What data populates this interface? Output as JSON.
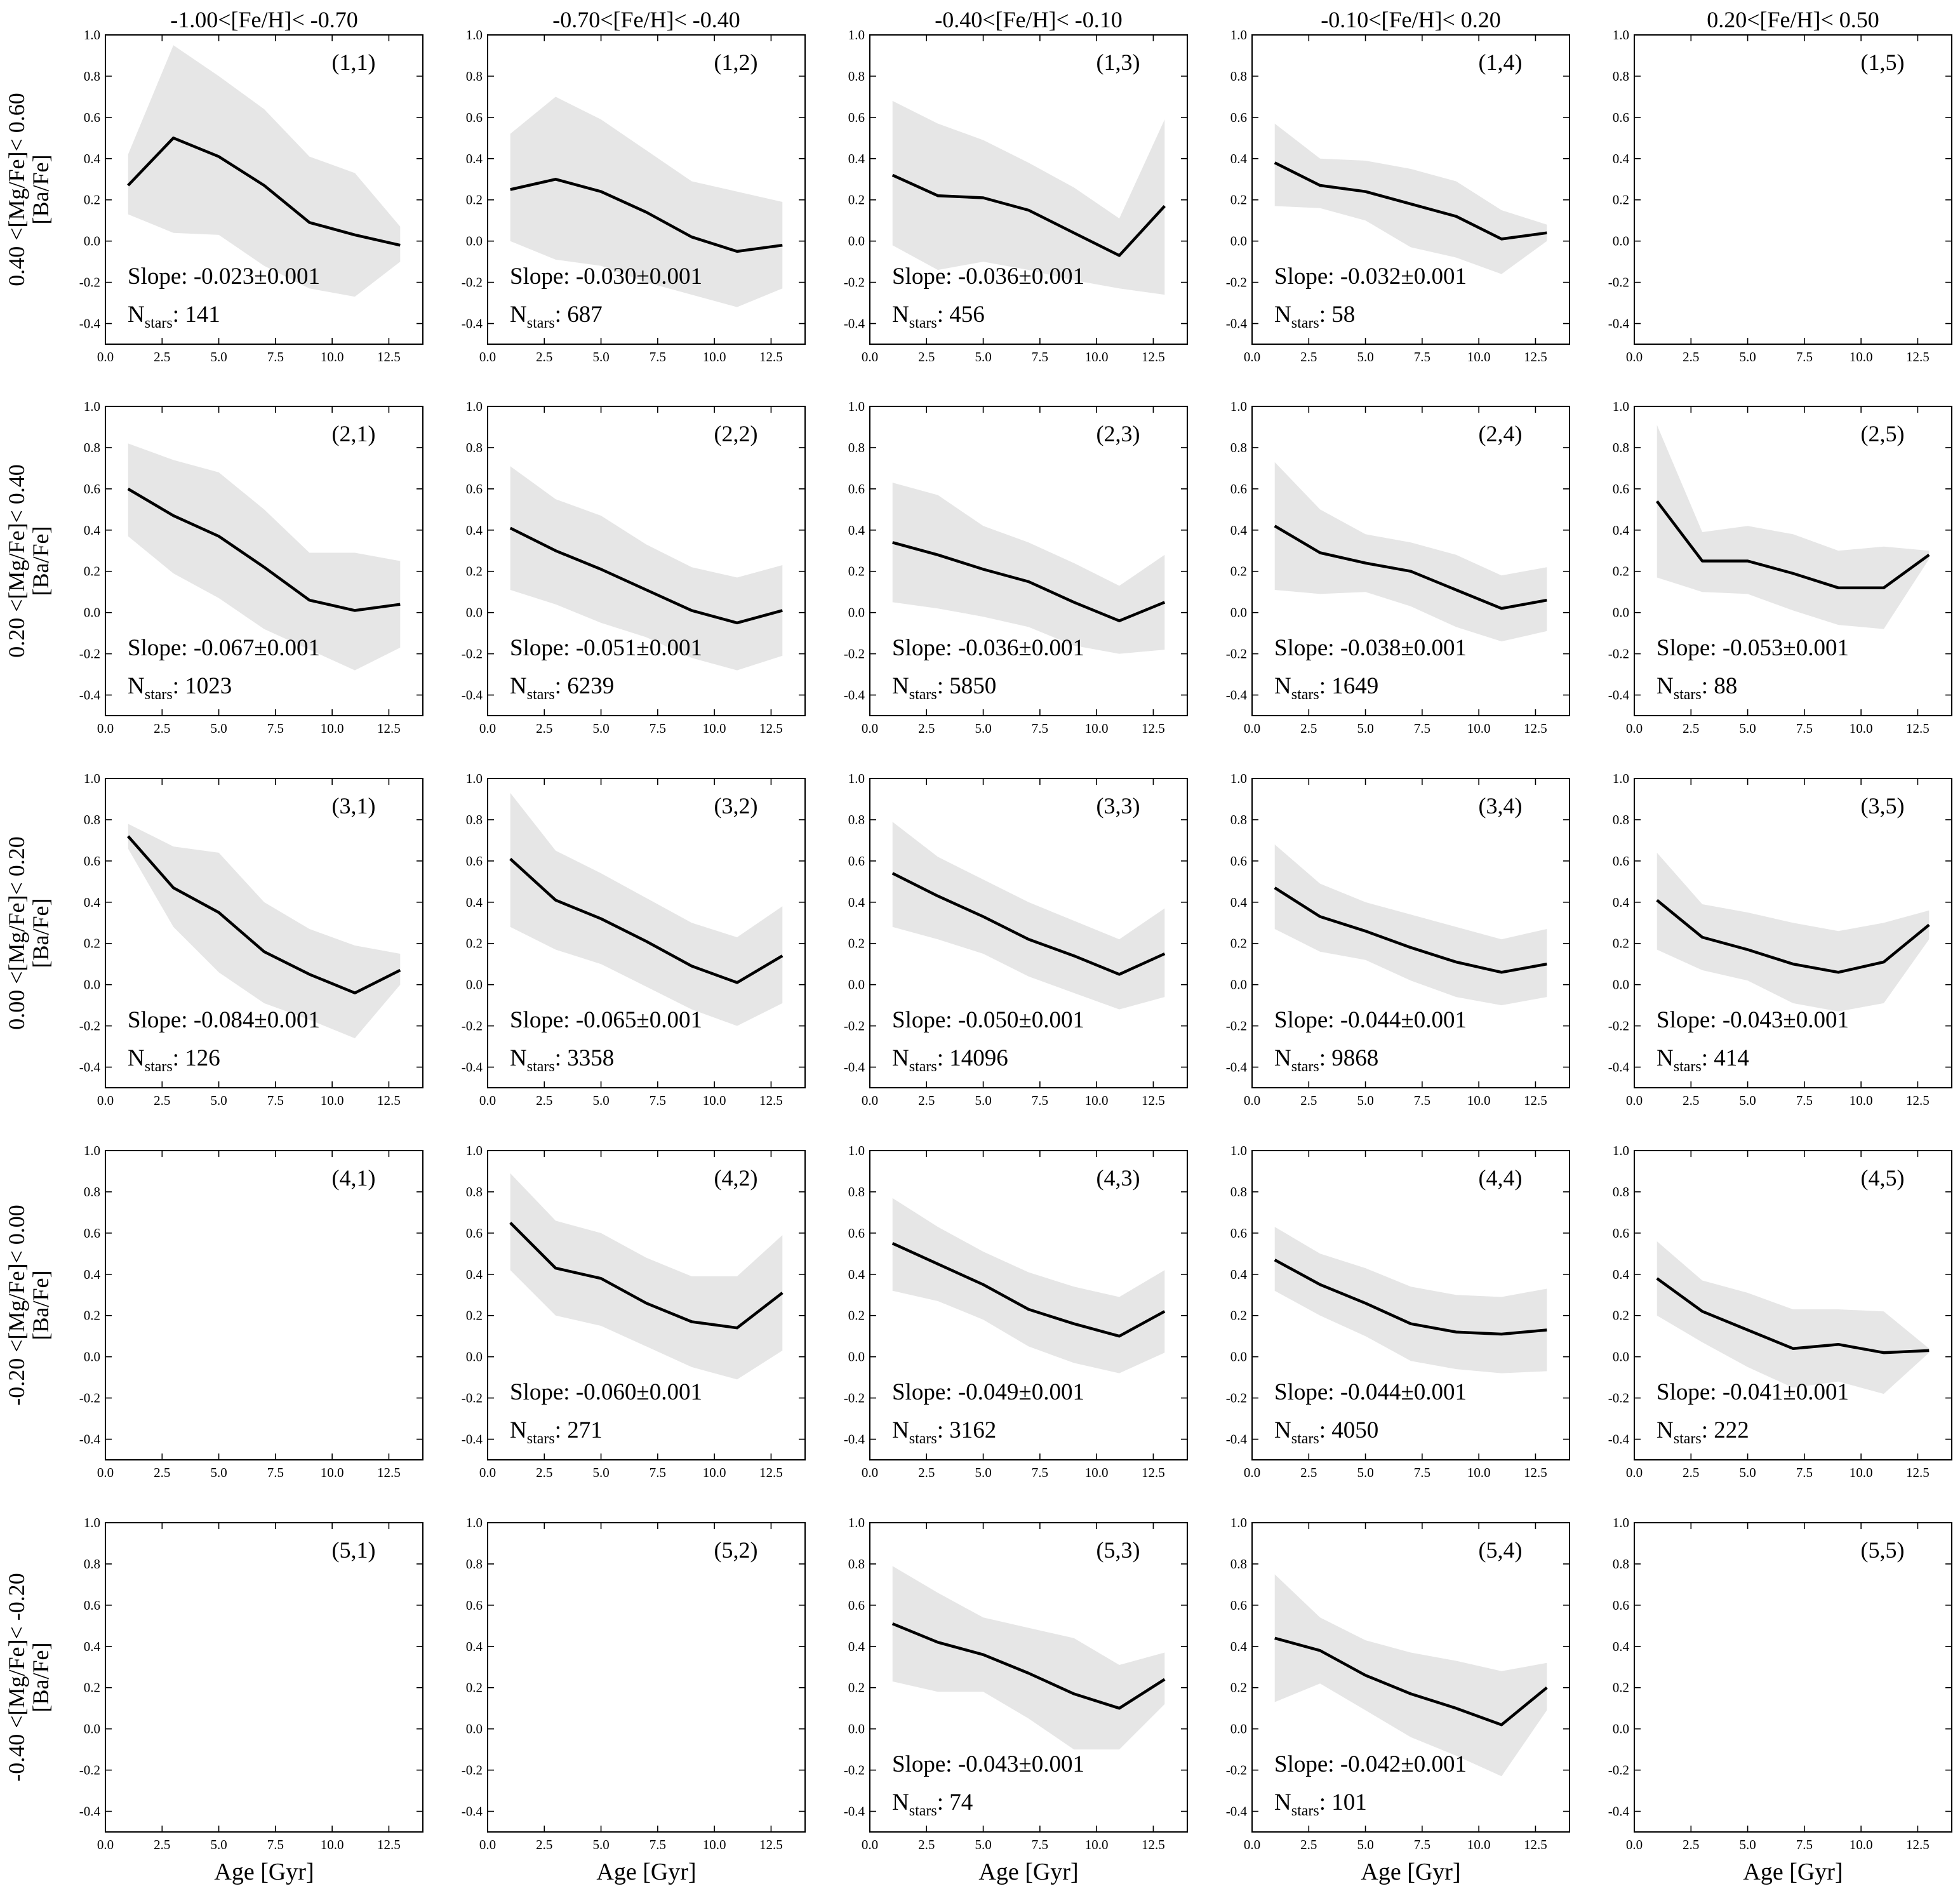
{
  "figure": {
    "column_titles": [
      "-1.00<[Fe/H]< -0.70",
      "-0.70<[Fe/H]< -0.40",
      "-0.40<[Fe/H]< -0.10",
      "-0.10<[Fe/H]< 0.20",
      "0.20<[Fe/H]< 0.50"
    ],
    "row_titles": [
      "0.40 <[Mg/Fe]< 0.60",
      "0.20 <[Mg/Fe]< 0.40",
      "0.00 <[Mg/Fe]< 0.20",
      "-0.20 <[Mg/Fe]< 0.00",
      "-0.40 <[Mg/Fe]< -0.20"
    ],
    "ylabel": "[Ba/Fe]",
    "xlabel": "Age [Gyr]",
    "slope_prefix": "Slope: ",
    "nstars_prefix": "N",
    "nstars_sub": "stars",
    "nstars_sep": ": ",
    "x_ticks": [
      "0.0",
      "2.5",
      "5.0",
      "7.5",
      "10.0",
      "12.5"
    ],
    "y_ticks": [
      "-0.4",
      "-0.2",
      "0.0",
      "0.2",
      "0.4",
      "0.6",
      "0.8",
      "1.0"
    ]
  },
  "chart_data": {
    "type": "line",
    "xlim": [
      0,
      14
    ],
    "ylim": [
      -0.5,
      1.0
    ],
    "x_tick_values": [
      0,
      2.5,
      5,
      7.5,
      10,
      12.5
    ],
    "y_tick_values": [
      -0.4,
      -0.2,
      0.0,
      0.2,
      0.4,
      0.6,
      0.8,
      1.0
    ],
    "band_color": "#e6e6e6",
    "line_color": "#000000",
    "panels": [
      {
        "tag": "(1,1)",
        "row": 0,
        "col": 0,
        "slope": "-0.023±0.001",
        "nstars": "141",
        "x": [
          1,
          3,
          5,
          7,
          9,
          11,
          13
        ],
        "median": [
          0.27,
          0.5,
          0.41,
          0.27,
          0.09,
          0.03,
          -0.02
        ],
        "upper": [
          0.42,
          0.95,
          0.8,
          0.64,
          0.41,
          0.33,
          0.07
        ],
        "lower": [
          0.13,
          0.04,
          0.03,
          -0.12,
          -0.23,
          -0.27,
          -0.1
        ]
      },
      {
        "tag": "(1,2)",
        "row": 0,
        "col": 1,
        "slope": "-0.030±0.001",
        "nstars": "687",
        "x": [
          1,
          3,
          5,
          7,
          9,
          11,
          13
        ],
        "median": [
          0.25,
          0.3,
          0.24,
          0.14,
          0.02,
          -0.05,
          -0.02
        ],
        "upper": [
          0.52,
          0.7,
          0.59,
          0.44,
          0.29,
          0.24,
          0.19
        ],
        "lower": [
          0.0,
          -0.09,
          -0.12,
          -0.2,
          -0.26,
          -0.32,
          -0.23
        ]
      },
      {
        "tag": "(1,3)",
        "row": 0,
        "col": 2,
        "slope": "-0.036±0.001",
        "nstars": "456",
        "x": [
          1,
          3,
          5,
          7,
          9,
          11,
          13
        ],
        "median": [
          0.32,
          0.22,
          0.21,
          0.15,
          0.04,
          -0.07,
          0.17
        ],
        "upper": [
          0.68,
          0.57,
          0.49,
          0.38,
          0.26,
          0.11,
          0.59
        ],
        "lower": [
          -0.02,
          -0.14,
          -0.1,
          -0.14,
          -0.19,
          -0.23,
          -0.26
        ]
      },
      {
        "tag": "(1,4)",
        "row": 0,
        "col": 3,
        "slope": "-0.032±0.001",
        "nstars": "58",
        "x": [
          1,
          3,
          5,
          7,
          9,
          11,
          13
        ],
        "median": [
          0.38,
          0.27,
          0.24,
          0.18,
          0.12,
          0.01,
          0.04
        ],
        "upper": [
          0.57,
          0.4,
          0.39,
          0.35,
          0.29,
          0.15,
          0.08
        ],
        "lower": [
          0.17,
          0.16,
          0.1,
          -0.03,
          -0.08,
          -0.16,
          0.0
        ]
      },
      {
        "tag": "(1,5)",
        "row": 0,
        "col": 4,
        "slope": "",
        "nstars": "",
        "x": [],
        "median": [],
        "upper": [],
        "lower": []
      },
      {
        "tag": "(2,1)",
        "row": 1,
        "col": 0,
        "slope": "-0.067±0.001",
        "nstars": "1023",
        "x": [
          1,
          3,
          5,
          7,
          9,
          11,
          13
        ],
        "median": [
          0.6,
          0.47,
          0.37,
          0.22,
          0.06,
          0.01,
          0.04
        ],
        "upper": [
          0.82,
          0.74,
          0.68,
          0.5,
          0.29,
          0.29,
          0.25
        ],
        "lower": [
          0.37,
          0.19,
          0.07,
          -0.08,
          -0.18,
          -0.28,
          -0.17
        ]
      },
      {
        "tag": "(2,2)",
        "row": 1,
        "col": 1,
        "slope": "-0.051±0.001",
        "nstars": "6239",
        "x": [
          1,
          3,
          5,
          7,
          9,
          11,
          13
        ],
        "median": [
          0.41,
          0.3,
          0.21,
          0.11,
          0.01,
          -0.05,
          0.01
        ],
        "upper": [
          0.71,
          0.55,
          0.47,
          0.33,
          0.22,
          0.17,
          0.23
        ],
        "lower": [
          0.11,
          0.04,
          -0.05,
          -0.12,
          -0.22,
          -0.28,
          -0.21
        ]
      },
      {
        "tag": "(2,3)",
        "row": 1,
        "col": 2,
        "slope": "-0.036±0.001",
        "nstars": "5850",
        "x": [
          1,
          3,
          5,
          7,
          9,
          11,
          13
        ],
        "median": [
          0.34,
          0.28,
          0.21,
          0.15,
          0.05,
          -0.04,
          0.05
        ],
        "upper": [
          0.63,
          0.57,
          0.42,
          0.34,
          0.24,
          0.13,
          0.28
        ],
        "lower": [
          0.05,
          0.02,
          -0.02,
          -0.07,
          -0.16,
          -0.2,
          -0.18
        ]
      },
      {
        "tag": "(2,4)",
        "row": 1,
        "col": 3,
        "slope": "-0.038±0.001",
        "nstars": "1649",
        "x": [
          1,
          3,
          5,
          7,
          9,
          11,
          13
        ],
        "median": [
          0.42,
          0.29,
          0.24,
          0.2,
          0.11,
          0.02,
          0.06
        ],
        "upper": [
          0.73,
          0.5,
          0.38,
          0.34,
          0.28,
          0.18,
          0.22
        ],
        "lower": [
          0.11,
          0.09,
          0.1,
          0.03,
          -0.07,
          -0.14,
          -0.09
        ]
      },
      {
        "tag": "(2,5)",
        "row": 1,
        "col": 4,
        "slope": "-0.053±0.001",
        "nstars": "88",
        "x": [
          1,
          3,
          5,
          7,
          9,
          11,
          13
        ],
        "median": [
          0.54,
          0.25,
          0.25,
          0.19,
          0.12,
          0.12,
          0.28
        ],
        "upper": [
          0.91,
          0.39,
          0.42,
          0.38,
          0.3,
          0.32,
          0.3
        ],
        "lower": [
          0.17,
          0.1,
          0.09,
          0.01,
          -0.06,
          -0.08,
          0.26
        ]
      },
      {
        "tag": "(3,1)",
        "row": 2,
        "col": 0,
        "slope": "-0.084±0.001",
        "nstars": "126",
        "x": [
          1,
          3,
          5,
          7,
          9,
          11,
          13
        ],
        "median": [
          0.72,
          0.47,
          0.35,
          0.16,
          0.05,
          -0.04,
          0.07
        ],
        "upper": [
          0.78,
          0.67,
          0.64,
          0.4,
          0.27,
          0.19,
          0.15
        ],
        "lower": [
          0.66,
          0.28,
          0.06,
          -0.09,
          -0.17,
          -0.26,
          0.0
        ]
      },
      {
        "tag": "(3,2)",
        "row": 2,
        "col": 1,
        "slope": "-0.065±0.001",
        "nstars": "3358",
        "x": [
          1,
          3,
          5,
          7,
          9,
          11,
          13
        ],
        "median": [
          0.61,
          0.41,
          0.32,
          0.21,
          0.09,
          0.01,
          0.14
        ],
        "upper": [
          0.93,
          0.65,
          0.54,
          0.42,
          0.3,
          0.23,
          0.38
        ],
        "lower": [
          0.28,
          0.17,
          0.1,
          -0.01,
          -0.12,
          -0.2,
          -0.09
        ]
      },
      {
        "tag": "(3,3)",
        "row": 2,
        "col": 2,
        "slope": "-0.050±0.001",
        "nstars": "14096",
        "x": [
          1,
          3,
          5,
          7,
          9,
          11,
          13
        ],
        "median": [
          0.54,
          0.43,
          0.33,
          0.22,
          0.14,
          0.05,
          0.15
        ],
        "upper": [
          0.79,
          0.62,
          0.51,
          0.4,
          0.31,
          0.22,
          0.37
        ],
        "lower": [
          0.28,
          0.22,
          0.15,
          0.04,
          -0.04,
          -0.12,
          -0.06
        ]
      },
      {
        "tag": "(3,4)",
        "row": 2,
        "col": 3,
        "slope": "-0.044±0.001",
        "nstars": "9868",
        "x": [
          1,
          3,
          5,
          7,
          9,
          11,
          13
        ],
        "median": [
          0.47,
          0.33,
          0.26,
          0.18,
          0.11,
          0.06,
          0.1
        ],
        "upper": [
          0.68,
          0.49,
          0.4,
          0.34,
          0.28,
          0.22,
          0.27
        ],
        "lower": [
          0.27,
          0.16,
          0.12,
          0.02,
          -0.06,
          -0.1,
          -0.06
        ]
      },
      {
        "tag": "(3,5)",
        "row": 2,
        "col": 4,
        "slope": "-0.043±0.001",
        "nstars": "414",
        "x": [
          1,
          3,
          5,
          7,
          9,
          11,
          13
        ],
        "median": [
          0.41,
          0.23,
          0.17,
          0.1,
          0.06,
          0.11,
          0.29
        ],
        "upper": [
          0.64,
          0.39,
          0.35,
          0.3,
          0.26,
          0.3,
          0.36
        ],
        "lower": [
          0.17,
          0.07,
          0.02,
          -0.09,
          -0.13,
          -0.09,
          0.22
        ]
      },
      {
        "tag": "(4,1)",
        "row": 3,
        "col": 0,
        "slope": "",
        "nstars": "",
        "x": [],
        "median": [],
        "upper": [],
        "lower": []
      },
      {
        "tag": "(4,2)",
        "row": 3,
        "col": 1,
        "slope": "-0.060±0.001",
        "nstars": "271",
        "x": [
          1,
          3,
          5,
          7,
          9,
          11,
          13
        ],
        "median": [
          0.65,
          0.43,
          0.38,
          0.26,
          0.17,
          0.14,
          0.31
        ],
        "upper": [
          0.89,
          0.66,
          0.6,
          0.48,
          0.39,
          0.39,
          0.59
        ],
        "lower": [
          0.42,
          0.2,
          0.15,
          0.05,
          -0.05,
          -0.11,
          0.03
        ]
      },
      {
        "tag": "(4,3)",
        "row": 3,
        "col": 2,
        "slope": "-0.049±0.001",
        "nstars": "3162",
        "x": [
          1,
          3,
          5,
          7,
          9,
          11,
          13
        ],
        "median": [
          0.55,
          0.45,
          0.35,
          0.23,
          0.16,
          0.1,
          0.22
        ],
        "upper": [
          0.77,
          0.63,
          0.51,
          0.41,
          0.34,
          0.29,
          0.42
        ],
        "lower": [
          0.32,
          0.27,
          0.18,
          0.05,
          -0.03,
          -0.08,
          0.02
        ]
      },
      {
        "tag": "(4,4)",
        "row": 3,
        "col": 3,
        "slope": "-0.044±0.001",
        "nstars": "4050",
        "x": [
          1,
          3,
          5,
          7,
          9,
          11,
          13
        ],
        "median": [
          0.47,
          0.35,
          0.26,
          0.16,
          0.12,
          0.11,
          0.13
        ],
        "upper": [
          0.63,
          0.5,
          0.43,
          0.34,
          0.3,
          0.29,
          0.33
        ],
        "lower": [
          0.32,
          0.2,
          0.1,
          -0.02,
          -0.06,
          -0.08,
          -0.07
        ]
      },
      {
        "tag": "(4,5)",
        "row": 3,
        "col": 4,
        "slope": "-0.041±0.001",
        "nstars": "222",
        "x": [
          1,
          3,
          5,
          7,
          9,
          11,
          13
        ],
        "median": [
          0.38,
          0.22,
          0.13,
          0.04,
          0.06,
          0.02,
          0.03
        ],
        "upper": [
          0.56,
          0.37,
          0.31,
          0.23,
          0.23,
          0.22,
          0.04
        ],
        "lower": [
          0.2,
          0.07,
          -0.05,
          -0.15,
          -0.12,
          -0.18,
          0.02
        ]
      },
      {
        "tag": "(5,1)",
        "row": 4,
        "col": 0,
        "slope": "",
        "nstars": "",
        "x": [],
        "median": [],
        "upper": [],
        "lower": []
      },
      {
        "tag": "(5,2)",
        "row": 4,
        "col": 1,
        "slope": "",
        "nstars": "",
        "x": [],
        "median": [],
        "upper": [],
        "lower": []
      },
      {
        "tag": "(5,3)",
        "row": 4,
        "col": 2,
        "slope": "-0.043±0.001",
        "nstars": "74",
        "x": [
          1,
          3,
          5,
          7,
          9,
          11,
          13
        ],
        "median": [
          0.51,
          0.42,
          0.36,
          0.27,
          0.17,
          0.1,
          0.24
        ],
        "upper": [
          0.79,
          0.66,
          0.54,
          0.49,
          0.44,
          0.31,
          0.37
        ],
        "lower": [
          0.23,
          0.18,
          0.18,
          0.05,
          -0.1,
          -0.1,
          0.12
        ]
      },
      {
        "tag": "(5,4)",
        "row": 4,
        "col": 3,
        "slope": "-0.042±0.001",
        "nstars": "101",
        "x": [
          1,
          3,
          5,
          7,
          9,
          11,
          13
        ],
        "median": [
          0.44,
          0.38,
          0.26,
          0.17,
          0.1,
          0.02,
          0.2
        ],
        "upper": [
          0.75,
          0.54,
          0.43,
          0.37,
          0.33,
          0.28,
          0.32
        ],
        "lower": [
          0.13,
          0.22,
          0.09,
          -0.04,
          -0.13,
          -0.23,
          0.09
        ]
      },
      {
        "tag": "(5,5)",
        "row": 4,
        "col": 4,
        "slope": "",
        "nstars": "",
        "x": [],
        "median": [],
        "upper": [],
        "lower": []
      }
    ]
  }
}
